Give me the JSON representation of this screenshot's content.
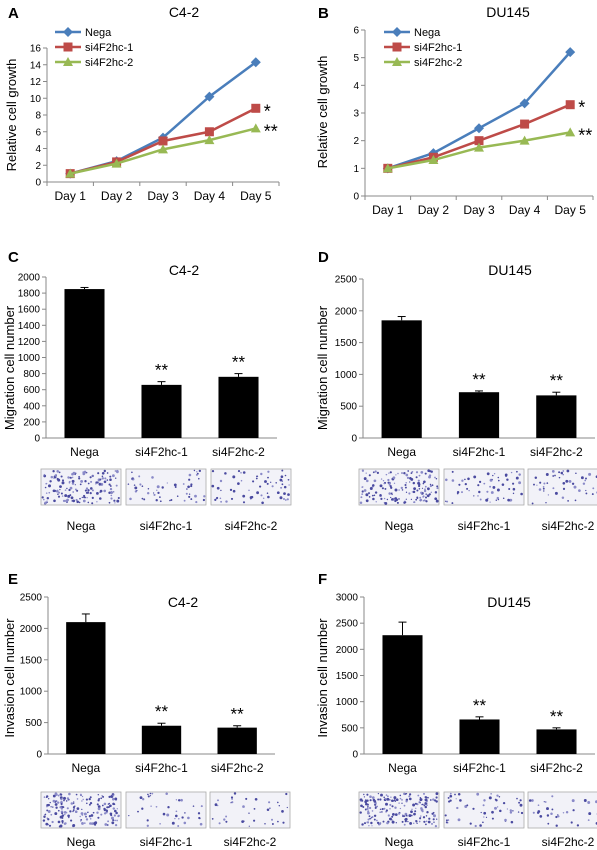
{
  "panels": [
    {
      "letter": "A",
      "chart_data": {
        "type": "line",
        "title": "C4-2",
        "ylabel": "Relative cell growth",
        "xlabel": "",
        "categories": [
          "Day 1",
          "Day 2",
          "Day 3",
          "Day 4",
          "Day 5"
        ],
        "ylim": [
          0,
          16
        ],
        "yticks": [
          0,
          2,
          4,
          6,
          8,
          10,
          12,
          14,
          16
        ],
        "grid": false,
        "legend": "top-left",
        "series": [
          {
            "name": "Nega",
            "values": [
              1.0,
              2.5,
              5.3,
              10.2,
              14.3
            ],
            "color": "#4a7ebb",
            "marker": "diamond",
            "annotation": ""
          },
          {
            "name": "si4F2hc-1",
            "values": [
              1.0,
              2.4,
              4.9,
              6.0,
              8.8
            ],
            "color": "#be4b48",
            "marker": "square",
            "annotation": "*"
          },
          {
            "name": "si4F2hc-2",
            "values": [
              1.0,
              2.2,
              3.9,
              5.0,
              6.4
            ],
            "color": "#98b954",
            "marker": "triangle",
            "annotation": "**"
          }
        ]
      }
    },
    {
      "letter": "B",
      "chart_data": {
        "type": "line",
        "title": "DU145",
        "ylabel": "Relative cell growth",
        "xlabel": "",
        "categories": [
          "Day 1",
          "Day 2",
          "Day 3",
          "Day 4",
          "Day 5"
        ],
        "ylim": [
          0,
          6
        ],
        "yticks": [
          0,
          1,
          2,
          3,
          4,
          5,
          6
        ],
        "grid": false,
        "legend": "top-left",
        "series": [
          {
            "name": "Nega",
            "values": [
              1.0,
              1.55,
              2.45,
              3.35,
              5.2
            ],
            "color": "#4a7ebb",
            "marker": "diamond",
            "annotation": ""
          },
          {
            "name": "si4F2hc-1",
            "values": [
              1.0,
              1.4,
              2.0,
              2.6,
              3.3
            ],
            "color": "#be4b48",
            "marker": "square",
            "annotation": "*"
          },
          {
            "name": "si4F2hc-2",
            "values": [
              1.0,
              1.3,
              1.75,
              2.0,
              2.3
            ],
            "color": "#98b954",
            "marker": "triangle",
            "annotation": "**"
          }
        ]
      }
    },
    {
      "letter": "C",
      "chart_data": {
        "type": "bar",
        "title": "C4-2",
        "ylabel": "Migration cell number",
        "xlabel": "",
        "categories": [
          "Nega",
          "si4F2hc-1",
          "si4F2hc-2"
        ],
        "values": [
          1850,
          660,
          760
        ],
        "errors": [
          20,
          40,
          40
        ],
        "annotations": [
          "",
          "**",
          "**"
        ],
        "ylim": [
          0,
          2000
        ],
        "yticks": [
          0,
          200,
          400,
          600,
          800,
          1000,
          1200,
          1400,
          1600,
          1800,
          2000
        ],
        "bar_color": "#000000"
      },
      "image_labels": [
        "Nega",
        "si4F2hc-1",
        "si4F2hc-2"
      ]
    },
    {
      "letter": "D",
      "chart_data": {
        "type": "bar",
        "title": "DU145",
        "ylabel": "Migration cell number",
        "xlabel": "",
        "categories": [
          "Nega",
          "si4F2hc-1",
          "si4F2hc-2"
        ],
        "values": [
          1850,
          720,
          670
        ],
        "errors": [
          60,
          20,
          50
        ],
        "annotations": [
          "",
          "**",
          "**"
        ],
        "ylim": [
          0,
          2500
        ],
        "yticks": [
          0,
          500,
          1000,
          1500,
          2000,
          2500
        ],
        "bar_color": "#000000"
      },
      "image_labels": [
        "Nega",
        "si4F2hc-1",
        "si4F2hc-2"
      ]
    },
    {
      "letter": "E",
      "chart_data": {
        "type": "bar",
        "title": "C4-2",
        "ylabel": "Invasion cell number",
        "xlabel": "",
        "categories": [
          "Nega",
          "si4F2hc-1",
          "si4F2hc-2"
        ],
        "values": [
          2100,
          450,
          420
        ],
        "errors": [
          130,
          40,
          30
        ],
        "annotations": [
          "",
          "**",
          "**"
        ],
        "ylim": [
          0,
          2500
        ],
        "yticks": [
          0,
          500,
          1000,
          1500,
          2000,
          2500
        ],
        "bar_color": "#000000"
      },
      "image_labels": [
        "Nega",
        "si4F2hc-1",
        "si4F2hc-2"
      ]
    },
    {
      "letter": "F",
      "chart_data": {
        "type": "bar",
        "title": "DU145",
        "ylabel": "Invasion cell number",
        "xlabel": "",
        "categories": [
          "Nega",
          "si4F2hc-1",
          "si4F2hc-2"
        ],
        "values": [
          2270,
          660,
          470
        ],
        "errors": [
          250,
          50,
          30
        ],
        "annotations": [
          "",
          "**",
          "**"
        ],
        "ylim": [
          0,
          3000
        ],
        "yticks": [
          0,
          500,
          1000,
          1500,
          2000,
          2500,
          3000
        ],
        "bar_color": "#000000"
      },
      "image_labels": [
        "Nega",
        "si4F2hc-1",
        "si4F2hc-2"
      ]
    }
  ]
}
